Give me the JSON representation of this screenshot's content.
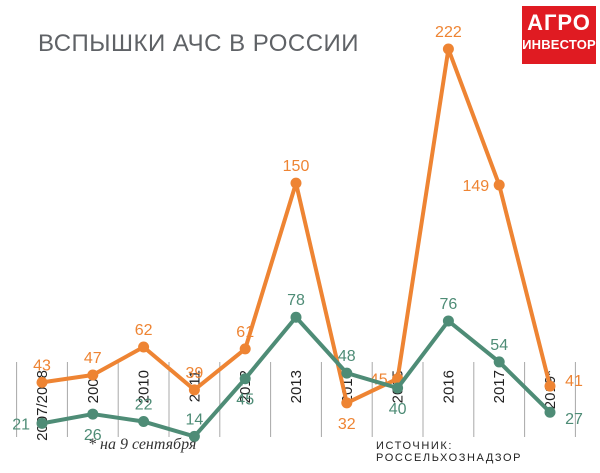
{
  "title": "ВСПЫШКИ АЧС В РОССИИ",
  "logo": {
    "line1": "АГРО",
    "line2": "ИНВЕСТОР"
  },
  "footnote": "* на 9 сентября",
  "source": "ИСТОЧНИК: РОССЕЛЬХОЗНАДЗОР",
  "colors": {
    "orange": "#ee8433",
    "green": "#4e8c76",
    "grid": "#a8a8a8",
    "logo_bg": "#e01b22",
    "title": "#5f6266"
  },
  "chart_data": {
    "type": "line",
    "categories": [
      "2007/2008",
      "2009",
      "2010",
      "2011",
      "2012",
      "2013",
      "2014",
      "2015",
      "2016",
      "2017",
      "2019*"
    ],
    "series": [
      {
        "values": [
          43,
          47,
          62,
          39,
          61,
          150,
          32,
          45,
          222,
          149,
          41
        ],
        "color": "#ee8433"
      },
      {
        "values": [
          21,
          26,
          22,
          14,
          45,
          78,
          48,
          40,
          76,
          54,
          27
        ],
        "color": "#4e8c76"
      }
    ],
    "grid": "vertical",
    "legend": "none"
  }
}
